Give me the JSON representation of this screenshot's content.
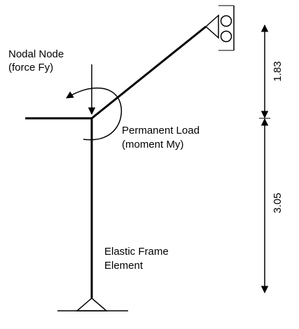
{
  "labels": {
    "nodal_node_line1": "Nodal Node",
    "nodal_node_line2": "(force Fy)",
    "permanent_load_line1": "Permanent Load",
    "permanent_load_line2": "(moment My)",
    "element_line1": "Elastic Frame",
    "element_line2": "Element"
  },
  "dimensions": {
    "upper": "1.83",
    "lower": "3.05"
  },
  "colors": {
    "stroke": "#000000",
    "background": "#ffffff"
  }
}
